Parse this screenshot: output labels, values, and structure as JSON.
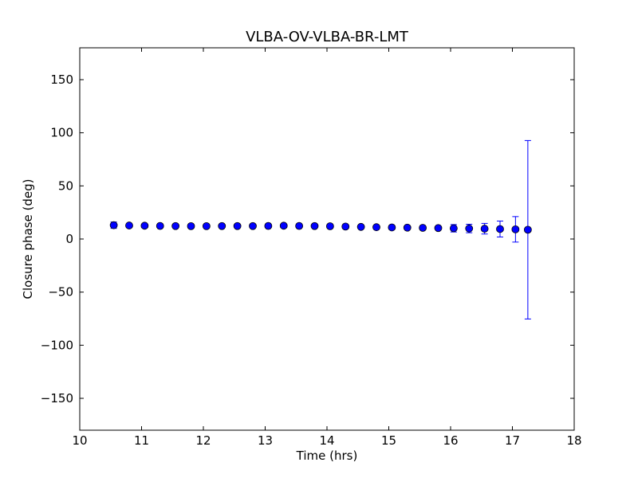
{
  "chart_data": {
    "type": "scatter",
    "title": "VLBA-OV-VLBA-BR-LMT",
    "xlabel": "Time (hrs)",
    "ylabel": "Closure phase (deg)",
    "xlim": [
      10,
      18
    ],
    "ylim": [
      -180,
      180
    ],
    "xticks": [
      10,
      11,
      12,
      13,
      14,
      15,
      16,
      17,
      18
    ],
    "xtick_labels": [
      "10",
      "11",
      "12",
      "13",
      "14",
      "15",
      "16",
      "17",
      "18"
    ],
    "yticks": [
      150,
      100,
      50,
      0,
      -50,
      -100,
      -150
    ],
    "ytick_labels": [
      "150",
      "100",
      "50",
      "0",
      "−50",
      "−100",
      "−150"
    ],
    "grid": false,
    "legend": "none",
    "marker_color": "#0000ff",
    "errorbar_color": "#0000ff",
    "series": [
      {
        "x": [
          10.55,
          10.8,
          11.05,
          11.3,
          11.55,
          11.8,
          12.05,
          12.3,
          12.55,
          12.8,
          13.05,
          13.3,
          13.55,
          13.8,
          14.05,
          14.3,
          14.55,
          14.8,
          15.05,
          15.3,
          15.55,
          15.8,
          16.05,
          16.3,
          16.55,
          16.8,
          17.05,
          17.25
        ],
        "y": [
          13,
          12.7,
          12.5,
          12.3,
          12.2,
          12.1,
          12.1,
          12.2,
          12.2,
          12.2,
          12.3,
          12.5,
          12.3,
          12.2,
          12,
          11.7,
          11.4,
          11.1,
          10.9,
          10.7,
          10.5,
          10.3,
          10.1,
          9.9,
          9.7,
          9.4,
          9.1,
          8.7
        ],
        "yerr": [
          3,
          1.5,
          1.2,
          1.0,
          1.0,
          1.0,
          1.0,
          1.0,
          1.0,
          1.0,
          1.0,
          1.0,
          1.0,
          1.0,
          1.0,
          1.0,
          1.0,
          1.0,
          1.0,
          1.0,
          1.0,
          1.0,
          3.5,
          4,
          5,
          7.5,
          12,
          84
        ]
      }
    ]
  }
}
